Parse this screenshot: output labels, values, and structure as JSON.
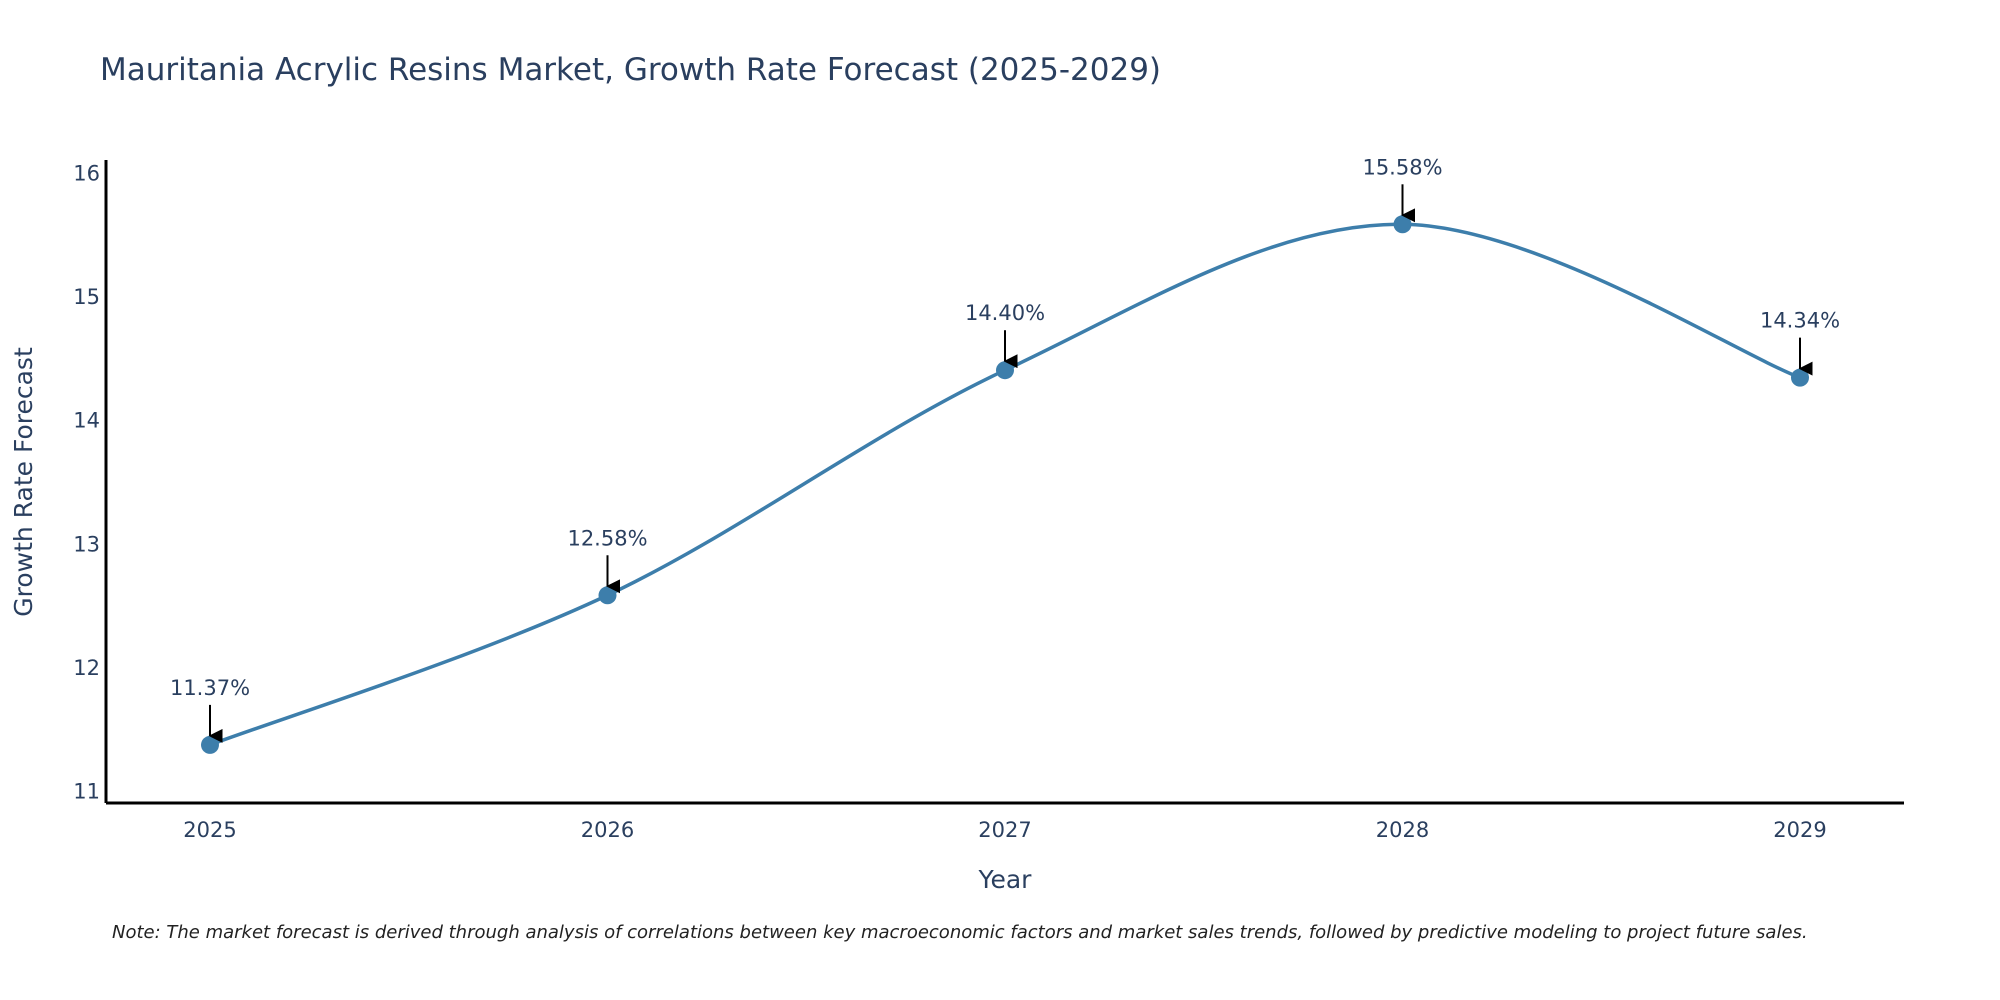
{
  "chart_data": {
    "type": "line",
    "title": "Mauritania Acrylic Resins Market, Growth Rate Forecast (2025-2029)",
    "xlabel": "Year",
    "ylabel": "Growth Rate Forecast",
    "categories": [
      "2025",
      "2026",
      "2027",
      "2028",
      "2029"
    ],
    "values": [
      11.37,
      12.58,
      14.4,
      15.58,
      14.34
    ],
    "data_labels": [
      "11.37%",
      "12.58%",
      "14.40%",
      "15.58%",
      "14.34%"
    ],
    "ylim": [
      10.9,
      16.1
    ],
    "yticks": [
      11,
      12,
      13,
      14,
      15,
      16
    ],
    "line_color": "#3d7eab",
    "marker_color": "#3d7eab",
    "annotation_arrow_color": "#000000",
    "grid": false,
    "line_shape": "spline"
  },
  "note": "Note: The market forecast is derived through analysis of correlations between key macroeconomic factors and market sales trends, followed by predictive modeling to project future sales."
}
